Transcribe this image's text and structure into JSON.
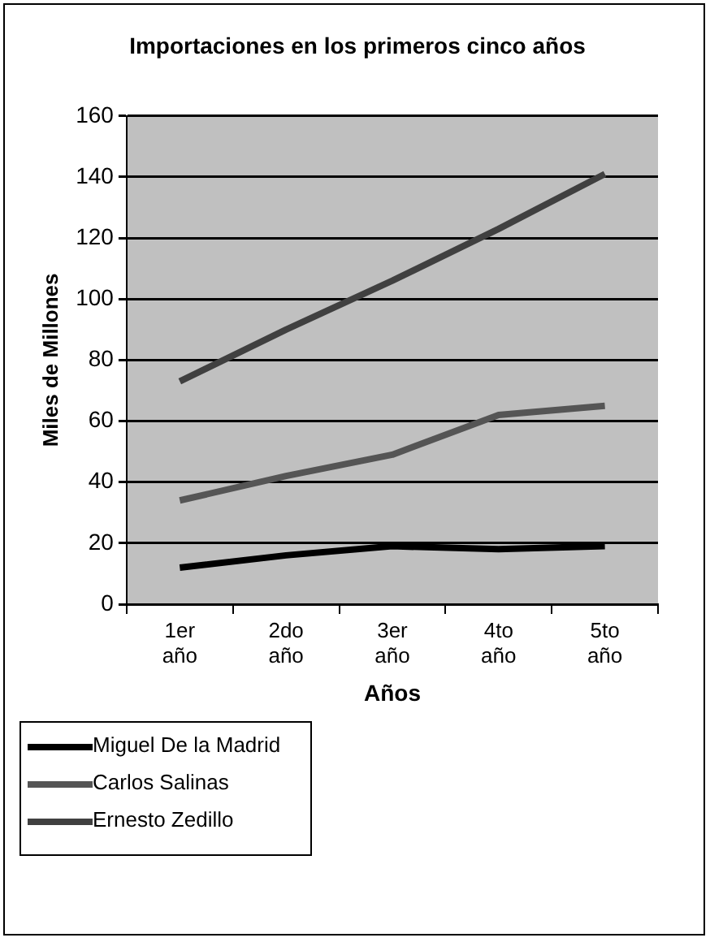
{
  "chart_data": {
    "type": "line",
    "title": "Importaciones en los primeros cinco años",
    "xlabel": "Años",
    "ylabel": "Miles de Millones",
    "categories": [
      "1er año",
      "2do año",
      "3er año",
      "4to año",
      "5to año"
    ],
    "series": [
      {
        "name": "Miguel De la Madrid",
        "color": "#000000",
        "values": [
          12,
          16,
          19,
          18,
          19
        ]
      },
      {
        "name": "Carlos Salinas",
        "color": "#555555",
        "values": [
          34,
          42,
          49,
          62,
          65
        ]
      },
      {
        "name": "Ernesto Zedillo",
        "color": "#404040",
        "values": [
          73,
          90,
          106,
          123,
          141
        ]
      }
    ],
    "ylim": [
      0,
      160
    ],
    "yticks": [
      0,
      20,
      40,
      60,
      80,
      100,
      120,
      140,
      160
    ],
    "grid": "y",
    "legend": "bottom left",
    "marker": "none",
    "line_style": "solid"
  }
}
